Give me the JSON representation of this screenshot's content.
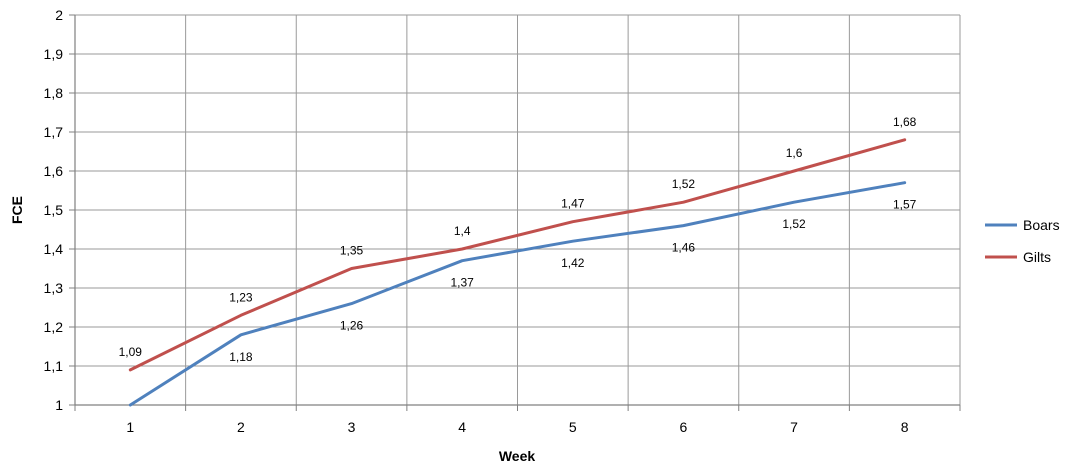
{
  "chart_data": {
    "type": "line",
    "title": "",
    "xlabel": "Week",
    "ylabel": "FCE",
    "categories": [
      "1",
      "2",
      "3",
      "4",
      "5",
      "6",
      "7",
      "8"
    ],
    "ylim": [
      1,
      2
    ],
    "yticks": [
      "1",
      "1,1",
      "1,2",
      "1,3",
      "1,4",
      "1,5",
      "1,6",
      "1,7",
      "1,8",
      "1,9",
      "2"
    ],
    "grid": true,
    "legend": "right",
    "series": [
      {
        "name": "Boars",
        "color": "#4F81BD",
        "values": [
          1.0,
          1.18,
          1.26,
          1.37,
          1.42,
          1.46,
          1.52,
          1.57
        ],
        "labels": [
          "",
          "1,18",
          "1,26",
          "1,37",
          "1,42",
          "1,46",
          "1,52",
          "1,57"
        ]
      },
      {
        "name": "Gilts",
        "color": "#C0504D",
        "values": [
          1.09,
          1.23,
          1.35,
          1.4,
          1.47,
          1.52,
          1.6,
          1.68
        ],
        "labels": [
          "1,09",
          "1,23",
          "1,35",
          "1,4",
          "1,47",
          "1,52",
          "1,6",
          "1,68"
        ]
      }
    ]
  }
}
